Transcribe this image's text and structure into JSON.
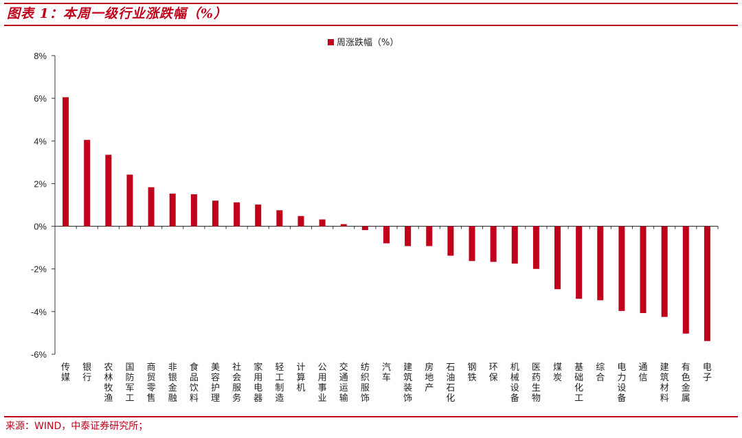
{
  "figure_title": "图表 1：本周一级行业涨跌幅（%）",
  "source_note": "来源：WIND，中泰证券研究所；",
  "colors": {
    "bar": "#c0001a",
    "accent": "#c0001a",
    "axis": "#333333"
  },
  "chart_data": {
    "type": "bar",
    "title": "",
    "xlabel": "",
    "ylabel": "",
    "ylim": [
      -6,
      8
    ],
    "yticks": [
      -6,
      -4,
      -2,
      0,
      2,
      4,
      6,
      8
    ],
    "ytick_labels": [
      "-6%",
      "-4%",
      "-2%",
      "0%",
      "2%",
      "4%",
      "6%",
      "8%"
    ],
    "grid": false,
    "legend": {
      "position": "top-center",
      "entries": [
        "周涨跌幅（%）"
      ]
    },
    "categories": [
      "传媒",
      "银行",
      "农林牧渔",
      "国防军工",
      "商贸零售",
      "非银金融",
      "食品饮料",
      "美容护理",
      "社会服务",
      "家用电器",
      "轻工制造",
      "计算机",
      "公用事业",
      "交通运输",
      "纺织服饰",
      "汽车",
      "建筑装饰",
      "房地产",
      "石油石化",
      "钢铁",
      "环保",
      "机械设备",
      "医药生物",
      "煤炭",
      "基础化工",
      "综合",
      "电力设备",
      "通信",
      "建筑材料",
      "有色金属",
      "电子"
    ],
    "series": [
      {
        "name": "周涨跌幅（%）",
        "values": [
          6.05,
          4.05,
          3.35,
          2.42,
          1.83,
          1.53,
          1.5,
          1.2,
          1.12,
          1.02,
          0.75,
          0.48,
          0.32,
          0.1,
          -0.18,
          -0.8,
          -0.93,
          -0.93,
          -1.38,
          -1.63,
          -1.67,
          -1.75,
          -2.0,
          -2.95,
          -3.4,
          -3.47,
          -3.97,
          -4.07,
          -4.25,
          -5.03,
          -5.38
        ]
      }
    ]
  }
}
